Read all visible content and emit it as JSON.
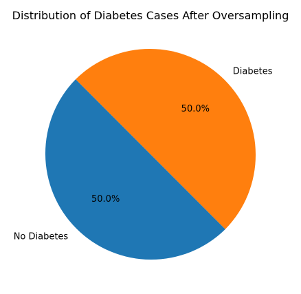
{
  "chart_data": {
    "type": "pie",
    "title": "Distribution of Diabetes Cases After Oversampling",
    "categories": [
      "No Diabetes",
      "Diabetes"
    ],
    "values": [
      50.0,
      50.0
    ],
    "percent_labels": [
      "50.0%",
      "50.0%"
    ],
    "colors": [
      "#1f77b4",
      "#ff7f0e"
    ],
    "start_angle_deg": 135,
    "direction": "counterclockwise"
  }
}
